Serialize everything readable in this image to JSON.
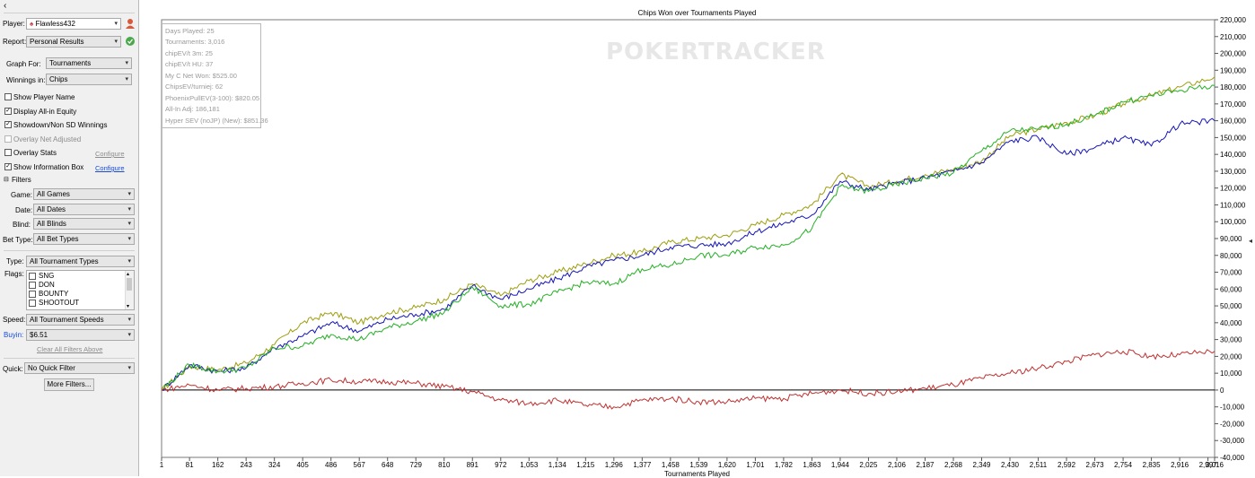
{
  "sidebar": {
    "collapse_glyph": "‹",
    "player_label": "Player:",
    "player_value": "Flawless432",
    "report_label": "Report:",
    "report_value": "Personal Results",
    "graph_for_label": "Graph For:",
    "graph_for_value": "Tournaments",
    "winnings_in_label": "Winnings in:",
    "winnings_in_value": "Chips",
    "checkboxes": {
      "show_player_name": {
        "label": "Show Player Name",
        "checked": false
      },
      "display_allin_equity": {
        "label": "Display All-in Equity",
        "checked": true
      },
      "showdown_winnings": {
        "label": "Showdown/Non SD Winnings",
        "checked": true
      },
      "overlay_net_adjusted": {
        "label": "Overlay Net Adjusted",
        "checked": false
      },
      "overlay_stats": {
        "label": "Overlay Stats",
        "checked": false
      },
      "show_info_box": {
        "label": "Show Information Box",
        "checked": true
      }
    },
    "configure_label": "Configure",
    "filters": {
      "header": "Filters",
      "game_label": "Game:",
      "game_value": "All Games",
      "date_label": "Date:",
      "date_value": "All Dates",
      "blind_label": "Blind:",
      "blind_value": "All Blinds",
      "bet_type_label": "Bet Type:",
      "bet_type_value": "All Bet Types",
      "type_label": "Type:",
      "type_value": "All Tournament Types",
      "flags_label": "Flags:",
      "flags": [
        "SNG",
        "DON",
        "BOUNTY",
        "SHOOTOUT"
      ],
      "speed_label": "Speed:",
      "speed_value": "All Tournament Speeds",
      "buyin_label": "Buyin:",
      "buyin_value": "$6.51",
      "clear_all": "Clear All Filters Above",
      "quick_label": "Quick:",
      "quick_value": "No Quick Filter",
      "more_filters": "More Filters..."
    }
  },
  "chart_data": {
    "type": "line",
    "title": "Chips Won over Tournaments Played",
    "xlabel": "Tournaments Played",
    "ylabel": "",
    "watermark": "POKERTRACKER",
    "xlim": [
      1,
      3016
    ],
    "ylim": [
      -40000,
      220000
    ],
    "x_ticks": [
      1,
      81,
      162,
      243,
      324,
      405,
      486,
      567,
      648,
      729,
      810,
      891,
      972,
      1053,
      1134,
      1215,
      1296,
      1377,
      1458,
      1539,
      1620,
      1701,
      1782,
      1863,
      1944,
      2025,
      2106,
      2187,
      2268,
      2349,
      2430,
      2511,
      2592,
      2673,
      2754,
      2835,
      2916,
      2997,
      3016
    ],
    "x_tick_labels": [
      "1",
      "81",
      "162",
      "243",
      "324",
      "405",
      "486",
      "567",
      "648",
      "729",
      "810",
      "891",
      "972",
      "1,053",
      "1,134",
      "1,215",
      "1,296",
      "1,377",
      "1,458",
      "1,539",
      "1,620",
      "1,701",
      "1,782",
      "1,863",
      "1,944",
      "2,025",
      "2,106",
      "2,187",
      "2,268",
      "2,349",
      "2,430",
      "2,511",
      "2,592",
      "2,673",
      "2,754",
      "2,835",
      "2,916",
      "2,997",
      "3,016"
    ],
    "y_ticks": [
      -40000,
      -30000,
      -20000,
      -10000,
      0,
      10000,
      20000,
      30000,
      40000,
      50000,
      60000,
      70000,
      80000,
      90000,
      100000,
      110000,
      120000,
      130000,
      140000,
      150000,
      160000,
      170000,
      180000,
      190000,
      200000,
      210000,
      220000
    ],
    "y_tick_labels": [
      "-40,000",
      "-30,000",
      "-20,000",
      "-10,000",
      "0",
      "10,000",
      "20,000",
      "30,000",
      "40,000",
      "50,000",
      "60,000",
      "70,000",
      "80,000",
      "90,000",
      "100,000",
      "110,000",
      "120,000",
      "130,000",
      "140,000",
      "150,000",
      "160,000",
      "170,000",
      "180,000",
      "190,000",
      "200,000",
      "210,000",
      "220,000"
    ],
    "grid": false,
    "series": [
      {
        "color": "#9e9e0e",
        "x": [
          1,
          81,
          162,
          243,
          324,
          405,
          486,
          567,
          648,
          729,
          810,
          891,
          972,
          1053,
          1134,
          1215,
          1296,
          1377,
          1458,
          1539,
          1620,
          1701,
          1782,
          1863,
          1944,
          2025,
          2106,
          2187,
          2268,
          2349,
          2430,
          2511,
          2592,
          2673,
          2754,
          2835,
          2916,
          3016
        ],
        "values": [
          0,
          14000,
          12000,
          16000,
          27000,
          40000,
          46000,
          40000,
          46000,
          49000,
          54000,
          63000,
          56000,
          65000,
          70000,
          75000,
          80000,
          82000,
          88000,
          90000,
          92000,
          98000,
          104000,
          110000,
          128000,
          121000,
          124000,
          128000,
          131000,
          136000,
          151000,
          155000,
          159000,
          163000,
          170000,
          175000,
          180000,
          186000
        ]
      },
      {
        "color": "#1515b8",
        "x": [
          1,
          81,
          162,
          243,
          324,
          405,
          486,
          567,
          648,
          729,
          810,
          891,
          972,
          1053,
          1134,
          1215,
          1296,
          1377,
          1458,
          1539,
          1620,
          1701,
          1782,
          1863,
          1944,
          2025,
          2106,
          2187,
          2268,
          2349,
          2430,
          2511,
          2592,
          2673,
          2754,
          2835,
          2916,
          3016
        ],
        "values": [
          0,
          15000,
          11000,
          13000,
          25000,
          32000,
          40000,
          35000,
          42000,
          45000,
          48000,
          62000,
          54000,
          60000,
          66000,
          73000,
          77000,
          80000,
          85000,
          86000,
          87000,
          94000,
          99000,
          104000,
          124000,
          119000,
          123000,
          126000,
          130000,
          135000,
          148000,
          150000,
          140000,
          144000,
          150000,
          145000,
          158000,
          160000
        ]
      },
      {
        "color": "#24b024",
        "x": [
          1,
          81,
          162,
          243,
          324,
          405,
          486,
          567,
          648,
          729,
          810,
          891,
          972,
          1053,
          1134,
          1215,
          1296,
          1377,
          1458,
          1539,
          1620,
          1701,
          1782,
          1863,
          1944,
          2025,
          2106,
          2187,
          2268,
          2349,
          2430,
          2511,
          2592,
          2673,
          2754,
          2835,
          2916,
          3016
        ],
        "values": [
          0,
          15000,
          11000,
          13000,
          25000,
          26000,
          33000,
          30000,
          37000,
          41000,
          46000,
          61000,
          50000,
          51000,
          58000,
          64000,
          63000,
          72000,
          74000,
          80000,
          80000,
          85000,
          86000,
          96000,
          121000,
          118000,
          122000,
          126000,
          129000,
          142000,
          154000,
          155000,
          158000,
          163000,
          171000,
          175000,
          178000,
          181000
        ]
      },
      {
        "color": "#c03030",
        "x": [
          1,
          81,
          162,
          243,
          324,
          405,
          486,
          567,
          648,
          729,
          810,
          891,
          972,
          1053,
          1134,
          1215,
          1296,
          1377,
          1458,
          1539,
          1620,
          1701,
          1782,
          1863,
          1944,
          2025,
          2106,
          2187,
          2268,
          2349,
          2430,
          2511,
          2592,
          2673,
          2754,
          2835,
          2916,
          3016
        ],
        "values": [
          0,
          3000,
          0,
          1000,
          2000,
          4000,
          6000,
          5000,
          5000,
          4000,
          2000,
          -1000,
          -6000,
          -8000,
          -6000,
          -9000,
          -10000,
          -6000,
          -5000,
          -7000,
          -7000,
          -5000,
          -5000,
          -2000,
          0,
          -2000,
          -1000,
          1000,
          3000,
          7000,
          10000,
          13000,
          17000,
          21000,
          23000,
          20000,
          21000,
          23000
        ]
      }
    ]
  }
}
